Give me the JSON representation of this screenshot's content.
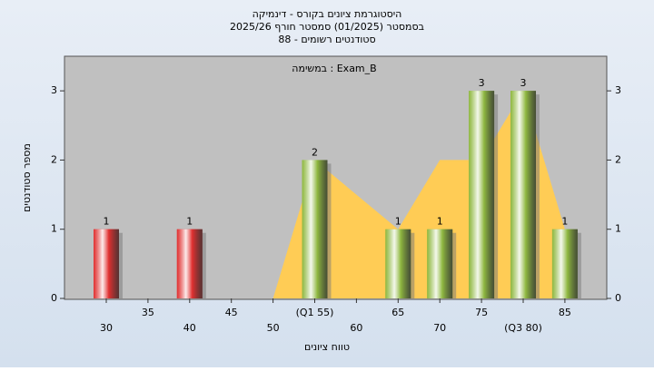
{
  "chart_data": {
    "type": "bar",
    "title": [
      "היסטוגרמת ציונים בקורס - דינמיקה",
      "בסמסטר (01/2025) סמסטר חורף 2025/26",
      "סטודנטים רשומים - 88"
    ],
    "annotation": "במשימה : Exam_B",
    "x_label": "טווח ציונים",
    "y_label": "מספר סטודנטים",
    "categories": [
      "30",
      "35",
      "40",
      "45",
      "50",
      "(Q1 55)",
      "60",
      "65",
      "70",
      "75",
      "(Q3 80)",
      "85"
    ],
    "values": [
      1,
      0,
      1,
      0,
      0,
      2,
      0,
      1,
      1,
      3,
      3,
      1
    ],
    "colors": [
      "#e03030",
      "#e03030",
      "#e03030",
      "#e03030",
      "#e03030",
      "#8fb840",
      "#8fb840",
      "#8fb840",
      "#8fb840",
      "#8fb840",
      "#8fb840",
      "#8fb840"
    ],
    "area": {
      "color": "#ffcc55",
      "values": [
        null,
        null,
        null,
        null,
        0,
        2,
        1.5,
        1,
        2,
        2,
        3,
        1
      ]
    },
    "ylim": [
      0,
      3.5
    ],
    "yticks": [
      0,
      1,
      2,
      3
    ]
  }
}
